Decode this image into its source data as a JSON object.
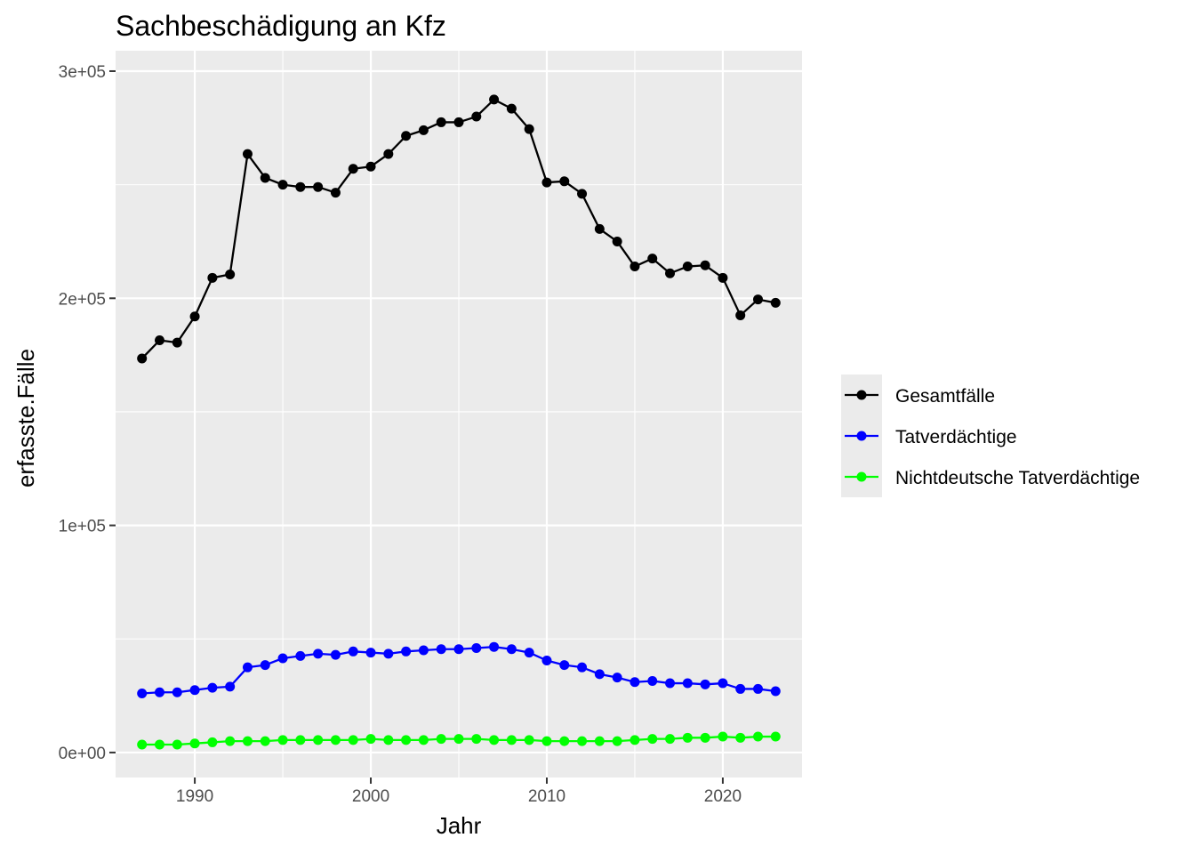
{
  "chart_data": {
    "type": "line",
    "title": "Sachbeschädigung an Kfz",
    "xlabel": "Jahr",
    "ylabel": "erfasste.Fälle",
    "x": [
      1987,
      1988,
      1989,
      1990,
      1991,
      1992,
      1993,
      1994,
      1995,
      1996,
      1997,
      1998,
      1999,
      2000,
      2001,
      2002,
      2003,
      2004,
      2005,
      2006,
      2007,
      2008,
      2009,
      2010,
      2011,
      2012,
      2013,
      2014,
      2015,
      2016,
      2017,
      2018,
      2019,
      2020,
      2021,
      2022,
      2023
    ],
    "xlim": [
      1985.5,
      2024.5
    ],
    "ylim": [
      -11000,
      309000
    ],
    "x_ticks": [
      1990,
      2000,
      2010,
      2020
    ],
    "x_tick_labels": [
      "1990",
      "2000",
      "2010",
      "2020"
    ],
    "y_ticks": [
      0,
      100000,
      200000,
      300000
    ],
    "y_tick_labels": [
      "0e+00",
      "1e+05",
      "2e+05",
      "3e+05"
    ],
    "grid": true,
    "legend_position": "right",
    "series": [
      {
        "name": "Gesamtfälle",
        "color": "#000000",
        "values": [
          173500,
          181500,
          180500,
          192000,
          209000,
          210500,
          263500,
          253000,
          250000,
          249000,
          249000,
          246500,
          257000,
          258000,
          263500,
          271500,
          274000,
          277500,
          277500,
          280000,
          287500,
          283500,
          274500,
          251000,
          251500,
          246000,
          230500,
          225000,
          214000,
          217500,
          211000,
          214000,
          214500,
          209000,
          192500,
          199500,
          198000
        ]
      },
      {
        "name": "Tatverdächtige",
        "color": "#0000ff",
        "values": [
          26000,
          26500,
          26500,
          27500,
          28500,
          29000,
          37500,
          38500,
          41500,
          42500,
          43500,
          43000,
          44500,
          44000,
          43500,
          44500,
          45000,
          45500,
          45500,
          46000,
          46500,
          45500,
          44000,
          40500,
          38500,
          37500,
          34500,
          33000,
          31000,
          31500,
          30500,
          30500,
          30000,
          30500,
          28000,
          28000,
          27000
        ]
      },
      {
        "name": "Nichtdeutsche Tatverdächtige",
        "color": "#00ff00",
        "values": [
          3500,
          3500,
          3500,
          4000,
          4500,
          5000,
          5000,
          5000,
          5500,
          5500,
          5500,
          5500,
          5500,
          6000,
          5500,
          5500,
          5500,
          6000,
          6000,
          6000,
          5500,
          5500,
          5500,
          5000,
          5000,
          5000,
          5000,
          5000,
          5500,
          6000,
          6000,
          6500,
          6500,
          7000,
          6500,
          7000,
          7000
        ]
      }
    ]
  }
}
